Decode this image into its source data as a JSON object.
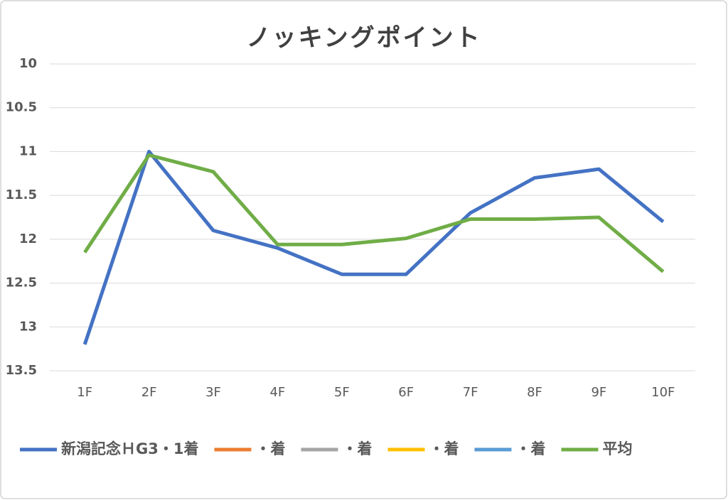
{
  "chart_data": {
    "type": "line",
    "title": "ノッキングポイント",
    "categories": [
      "1F",
      "2F",
      "3F",
      "4F",
      "5F",
      "6F",
      "7F",
      "8F",
      "9F",
      "10F"
    ],
    "ylim": [
      10,
      13.5
    ],
    "y_inverted": true,
    "yticks": [
      10,
      10.5,
      11,
      11.5,
      12,
      12.5,
      13,
      13.5
    ],
    "grid": true,
    "legend": "bottom",
    "series": [
      {
        "name": "新潟記念ＨG3・1着",
        "color": "#4472c4",
        "values": [
          13.2,
          11.0,
          11.9,
          12.1,
          12.4,
          12.4,
          11.7,
          11.3,
          11.2,
          11.8
        ]
      },
      {
        "name": "・着",
        "color": "#ed7d31",
        "values": [
          null,
          null,
          null,
          null,
          null,
          null,
          null,
          null,
          null,
          null
        ]
      },
      {
        "name": "・着",
        "color": "#a5a5a5",
        "values": [
          null,
          null,
          null,
          null,
          null,
          null,
          null,
          null,
          null,
          null
        ]
      },
      {
        "name": "・着",
        "color": "#ffc000",
        "values": [
          null,
          null,
          null,
          null,
          null,
          null,
          null,
          null,
          null,
          null
        ]
      },
      {
        "name": "・着",
        "color": "#5b9bd5",
        "values": [
          null,
          null,
          null,
          null,
          null,
          null,
          null,
          null,
          null,
          null
        ]
      },
      {
        "name": "平均",
        "color": "#70ad47",
        "values": [
          12.15,
          11.04,
          11.23,
          12.06,
          12.06,
          11.99,
          11.77,
          11.77,
          11.75,
          12.37
        ]
      }
    ]
  }
}
